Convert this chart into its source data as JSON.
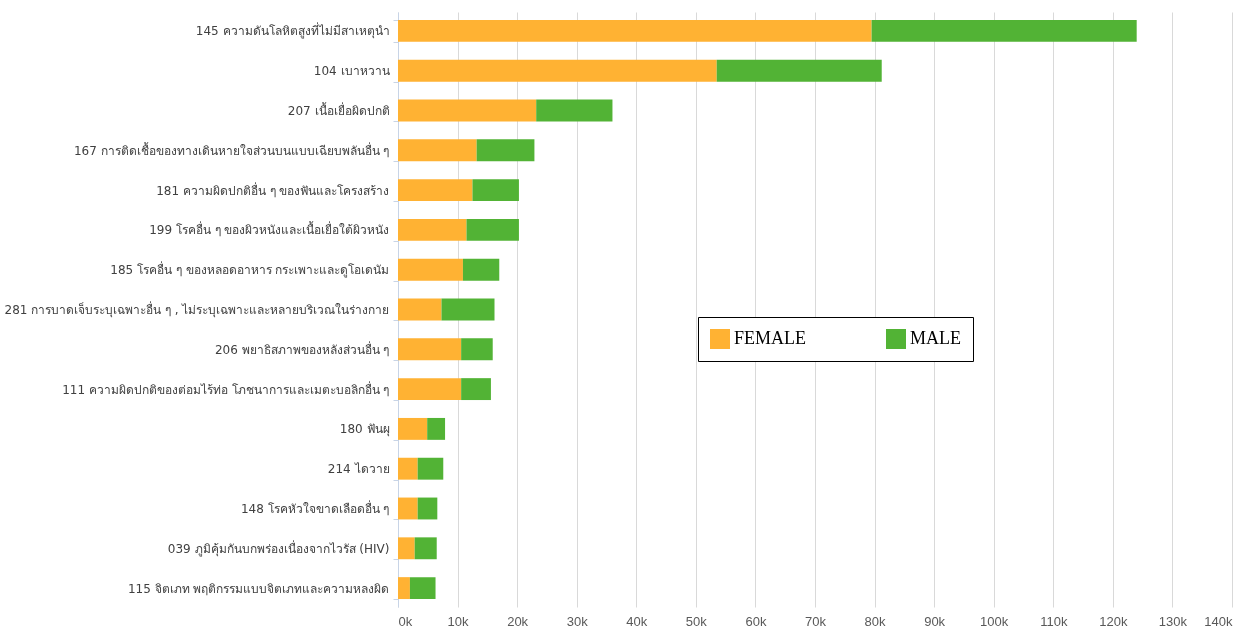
{
  "chart_data": {
    "type": "bar",
    "orientation": "horizontal",
    "stacked": true,
    "categories": [
      "145 ความดันโลหิตสูงที่ไม่มีสาเหตุนำ",
      "104 เบาหวาน",
      "207 เนื้อเยื่อผิดปกติ",
      "167 การติดเชื้อของทางเดินหายใจส่วนบนแบบเฉียบพลันอื่น ๆ",
      "181 ความผิดปกติอื่น ๆ ของฟันและโครงสร้าง",
      "199 โรคอื่น ๆ ของผิวหนังและเนื้อเยื่อใต้ผิวหนัง",
      "185 โรคอื่น ๆ ของหลอดอาหาร กระเพาะและดูโอเดนัม",
      "281 การบาดเจ็บระบุเฉพาะอื่น ๆ , ไม่ระบุเฉพาะและหลายบริเวณในร่างกาย",
      "206 พยาธิสภาพของหลังส่วนอื่น ๆ",
      "111 ความผิดปกติของต่อมไร้ท่อ โภชนาการและเมตะบอลิกอื่น ๆ",
      "180 ฟันผุ",
      "214 ไดวาย",
      "148 โรคหัวใจขาดเลือดอื่น ๆ",
      "039 ภูมิคุ้มกันบกพร่องเนื่องจากไวรัส (HIV)",
      "115 จิตเภท พฤติกรรมแบบจิตเภทและความหลงผิด"
    ],
    "series": [
      {
        "name": "FEMALE",
        "color": "#ffb233",
        "values": [
          79.5,
          53.5,
          23.2,
          13.2,
          12.5,
          11.5,
          10.9,
          7.3,
          10.6,
          10.6,
          4.9,
          3.3,
          3.3,
          2.8,
          2.0
        ]
      },
      {
        "name": "MALE",
        "color": "#52b335",
        "values": [
          44.5,
          27.7,
          12.8,
          9.7,
          7.8,
          8.8,
          6.1,
          8.9,
          5.3,
          5.0,
          3.0,
          4.3,
          3.3,
          3.7,
          4.3
        ]
      }
    ],
    "xlim": [
      0,
      140
    ],
    "xticks": [
      {
        "value": 0,
        "label": "0k"
      },
      {
        "value": 10,
        "label": "10k"
      },
      {
        "value": 20,
        "label": "20k"
      },
      {
        "value": 30,
        "label": "30k"
      },
      {
        "value": 40,
        "label": "40k"
      },
      {
        "value": 50,
        "label": "50k"
      },
      {
        "value": 60,
        "label": "60k"
      },
      {
        "value": 70,
        "label": "70k"
      },
      {
        "value": 80,
        "label": "80k"
      },
      {
        "value": 90,
        "label": "90k"
      },
      {
        "value": 100,
        "label": "100k"
      },
      {
        "value": 110,
        "label": "110k"
      },
      {
        "value": 120,
        "label": "120k"
      },
      {
        "value": 130,
        "label": "130k"
      },
      {
        "value": 140,
        "label": "140k"
      }
    ],
    "grid": "x",
    "legend": "right"
  }
}
